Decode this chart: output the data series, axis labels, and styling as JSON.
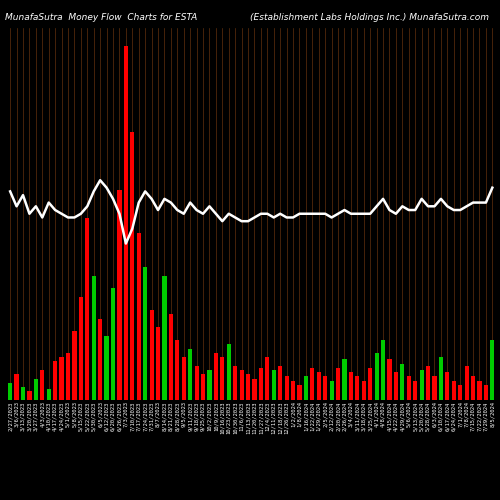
{
  "title_left": "MunafaSutra  Money Flow  Charts for ESTA",
  "title_right": "(Establishment Labs Holdings Inc.) MunafaSutra.com",
  "background_color": "#000000",
  "bar_colors": [
    "green",
    "red",
    "green",
    "red",
    "green",
    "red",
    "green",
    "red",
    "red",
    "red",
    "red",
    "red",
    "red",
    "green",
    "red",
    "green",
    "green",
    "red",
    "red",
    "red",
    "red",
    "green",
    "red",
    "red",
    "green",
    "red",
    "red",
    "red",
    "green",
    "red",
    "red",
    "green",
    "red",
    "red",
    "green",
    "red",
    "red",
    "red",
    "red",
    "red",
    "red",
    "green",
    "red",
    "red",
    "red",
    "red",
    "green",
    "red",
    "red",
    "red",
    "green",
    "red",
    "green",
    "red",
    "red",
    "red",
    "red",
    "green",
    "green",
    "red",
    "red",
    "green",
    "red",
    "red",
    "green",
    "red",
    "red",
    "green",
    "red",
    "red",
    "red",
    "red",
    "red",
    "red",
    "red",
    "green"
  ],
  "bar_heights": [
    8,
    12,
    6,
    4,
    10,
    14,
    5,
    18,
    20,
    22,
    32,
    48,
    85,
    58,
    38,
    30,
    52,
    98,
    165,
    125,
    78,
    62,
    42,
    34,
    58,
    40,
    28,
    20,
    24,
    16,
    12,
    14,
    22,
    20,
    26,
    16,
    14,
    12,
    10,
    15,
    20,
    14,
    16,
    11,
    9,
    7,
    11,
    15,
    13,
    11,
    9,
    15,
    19,
    13,
    11,
    9,
    15,
    22,
    28,
    19,
    13,
    17,
    11,
    9,
    14,
    16,
    11,
    20,
    13,
    9,
    7,
    16,
    11,
    9,
    7,
    28
  ],
  "line_values": [
    0.56,
    0.52,
    0.55,
    0.5,
    0.52,
    0.49,
    0.53,
    0.51,
    0.5,
    0.49,
    0.49,
    0.5,
    0.52,
    0.56,
    0.59,
    0.57,
    0.54,
    0.5,
    0.42,
    0.46,
    0.53,
    0.56,
    0.54,
    0.51,
    0.54,
    0.53,
    0.51,
    0.5,
    0.53,
    0.51,
    0.5,
    0.52,
    0.5,
    0.48,
    0.5,
    0.49,
    0.48,
    0.48,
    0.49,
    0.5,
    0.5,
    0.49,
    0.5,
    0.49,
    0.49,
    0.5,
    0.5,
    0.5,
    0.5,
    0.5,
    0.49,
    0.5,
    0.51,
    0.5,
    0.5,
    0.5,
    0.5,
    0.52,
    0.54,
    0.51,
    0.5,
    0.52,
    0.51,
    0.51,
    0.54,
    0.52,
    0.52,
    0.54,
    0.52,
    0.51,
    0.51,
    0.52,
    0.53,
    0.53,
    0.53,
    0.57
  ],
  "xlabels": [
    "2/27/2023",
    "3/6/2023",
    "3/13/2023",
    "3/20/2023",
    "3/27/2023",
    "4/3/2023",
    "4/10/2023",
    "4/17/2023",
    "4/24/2023",
    "5/1/2023",
    "5/8/2023",
    "5/15/2023",
    "5/22/2023",
    "5/30/2023",
    "6/5/2023",
    "6/12/2023",
    "6/20/2023",
    "6/26/2023",
    "7/3/2023",
    "7/10/2023",
    "7/17/2023",
    "7/24/2023",
    "7/31/2023",
    "8/7/2023",
    "8/14/2023",
    "8/21/2023",
    "8/28/2023",
    "9/5/2023",
    "9/11/2023",
    "9/18/2023",
    "9/25/2023",
    "10/2/2023",
    "10/9/2023",
    "10/16/2023",
    "10/23/2023",
    "10/30/2023",
    "11/6/2023",
    "11/13/2023",
    "11/20/2023",
    "11/27/2023",
    "12/4/2023",
    "12/11/2023",
    "12/18/2023",
    "12/26/2023",
    "1/2/2024",
    "1/8/2024",
    "1/16/2024",
    "1/22/2024",
    "1/29/2024",
    "2/5/2024",
    "2/12/2024",
    "2/20/2024",
    "2/26/2024",
    "3/4/2024",
    "3/11/2024",
    "3/18/2024",
    "3/25/2024",
    "4/1/2024",
    "4/8/2024",
    "4/15/2024",
    "4/22/2024",
    "4/29/2024",
    "5/6/2024",
    "5/13/2024",
    "5/20/2024",
    "5/28/2024",
    "6/3/2024",
    "6/10/2024",
    "6/17/2024",
    "6/24/2024",
    "7/1/2024",
    "7/8/2024",
    "7/15/2024",
    "7/22/2024",
    "7/29/2024",
    "8/5/2024"
  ],
  "line_color": "#ffffff",
  "vline_color": "#8B4513",
  "title_fontsize": 6.5,
  "xlabel_fontsize": 4.0,
  "bar_red": "#ff0000",
  "bar_green": "#00cc00"
}
